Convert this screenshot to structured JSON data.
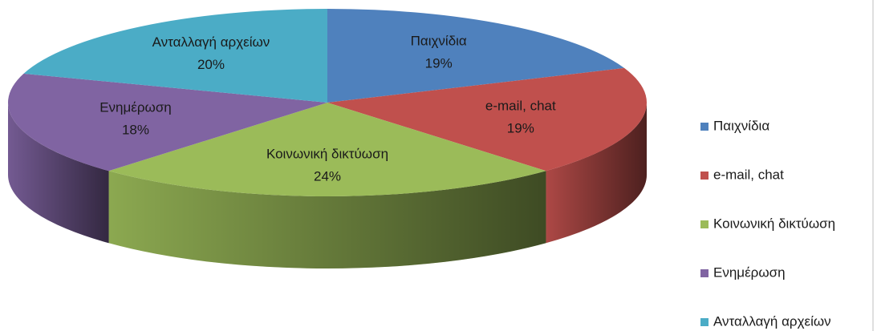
{
  "chart_data": {
    "type": "pie3d",
    "categories": [
      "Παιχνίδια",
      "e-mail, chat",
      "Κοινωνική δικτύωση",
      "Ενημέρωση",
      "Ανταλλαγή αρχείων"
    ],
    "values": [
      19,
      19,
      24,
      18,
      20
    ],
    "value_labels": [
      "19%",
      "19%",
      "24%",
      "18%",
      "20%"
    ],
    "colors": [
      "#4f81bd",
      "#c0504d",
      "#9bbb59",
      "#8064a2",
      "#4bacc6"
    ],
    "legend": "right"
  }
}
